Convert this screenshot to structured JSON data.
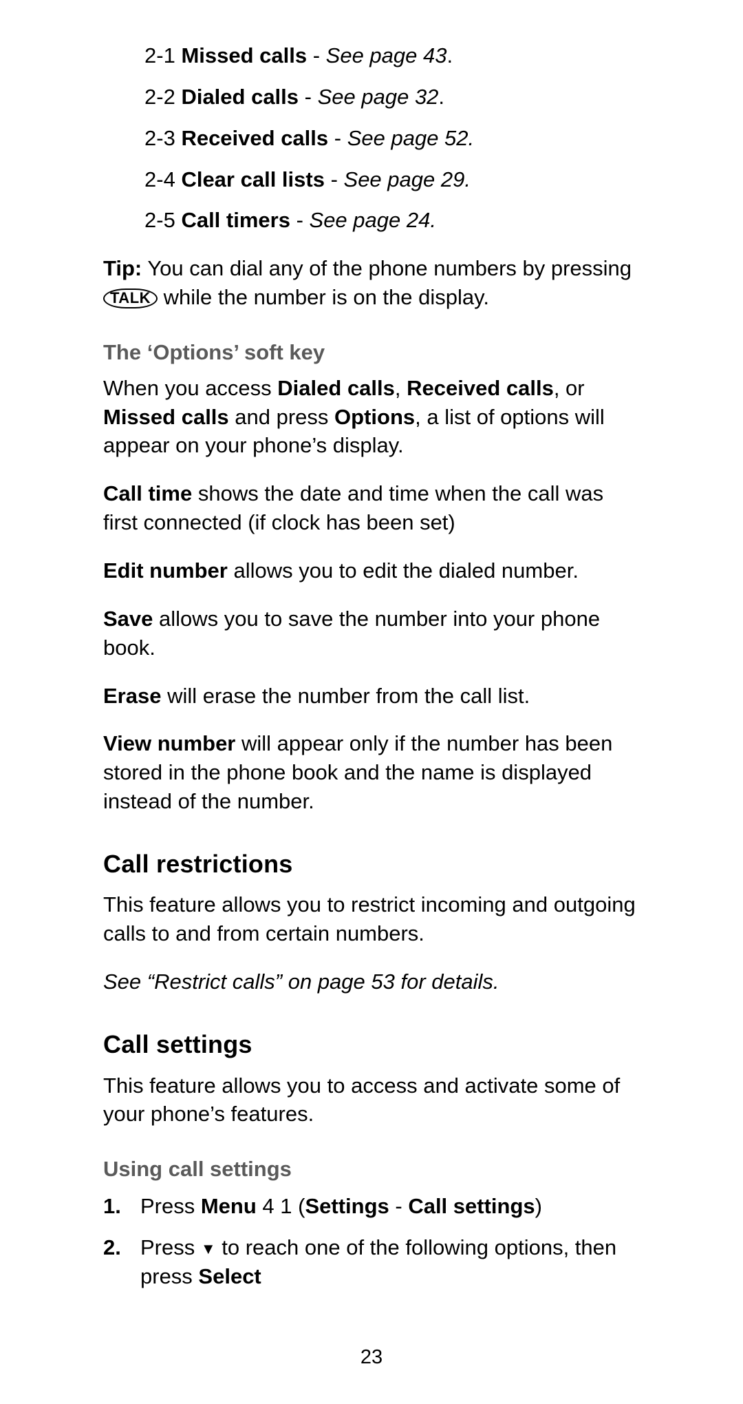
{
  "menu_items": [
    {
      "num": "2-1",
      "name": "Missed calls",
      "page": "See page 43"
    },
    {
      "num": "2-2",
      "name": "Dialed calls",
      "page": "See page 32"
    },
    {
      "num": "2-3",
      "name": "Received calls",
      "page": "See page 52."
    },
    {
      "num": "2-4",
      "name": "Clear call lists",
      "page": "See page 29."
    },
    {
      "num": "2-5",
      "name": "Call timers",
      "page": "See page 24."
    }
  ],
  "tip": {
    "label": "Tip:",
    "before_key": "You can dial any of the phone numbers by pressing",
    "key_label": "TALK",
    "after_key": "while the number is on the display."
  },
  "options_section": {
    "heading": "The ‘Options’ soft key",
    "intro": {
      "t1": "When you access ",
      "b1": "Dialed calls",
      "t2": ", ",
      "b2": "Received calls",
      "t3": ", or ",
      "b3": "Missed calls",
      "t4": " and press ",
      "b4": "Options",
      "t5": ", a list of options will appear on your phone’s display."
    },
    "call_time": {
      "label": "Call time",
      "text": " shows the date and time when the call was first connected (if clock has been set)"
    },
    "edit_number": {
      "label": "Edit number",
      "text": " allows you to edit the dialed number."
    },
    "save": {
      "label": "Save",
      "text": " allows you to save the number into your phone book."
    },
    "erase": {
      "label": "Erase",
      "text": " will erase the number from the call list."
    },
    "view_number": {
      "label": "View number",
      "text": " will appear only if the number has been stored in the phone book and the name is displayed instead of the number."
    }
  },
  "call_restrictions": {
    "heading": "Call restrictions",
    "body": "This feature allows you to restrict incoming and outgoing calls to and from certain numbers.",
    "see": "See “Restrict calls” on page 53 for details."
  },
  "call_settings": {
    "heading": "Call settings",
    "body": "This feature allows you to access and activate some of your phone’s features.",
    "using_heading": "Using call settings",
    "step1": {
      "num": "1.",
      "t1": "Press ",
      "b1": "Menu",
      "t2": " 4 1 (",
      "b2": "Settings",
      "t3": " - ",
      "b3": "Call settings",
      "t4": ")"
    },
    "step2": {
      "num": "2.",
      "t1": "Press ",
      "t2": " to reach one of the following options, then press ",
      "b1": "Select"
    }
  },
  "page_number": "23"
}
